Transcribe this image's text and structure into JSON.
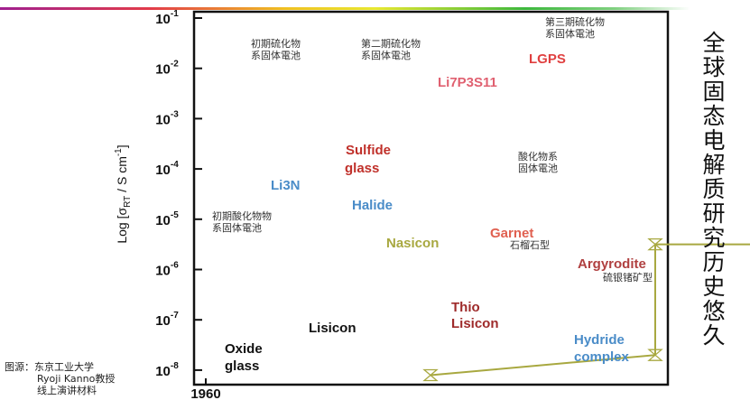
{
  "slide": {
    "side_title": "全球固态电解质研究历史悠久",
    "source_lines": [
      "图源：东京工业大学",
      "Ryoji Kanno教授",
      "线上演讲材料"
    ]
  },
  "chart_data": {
    "type": "line",
    "xlabel": "",
    "ylabel": "Log [σRT / S cm-1]",
    "ylabel_parts": {
      "prefix": "Log [σ",
      "sub": "RT",
      "mid": " / S cm",
      "sup": "-1",
      "suffix": "]"
    },
    "x_range": [
      1957,
      2023
    ],
    "y_scale": "log",
    "y_range_log10": [
      -8.3,
      -0.9
    ],
    "x_ticks": [
      "1960",
      "1970",
      "1980",
      "1990",
      "2000",
      "2010",
      "2020"
    ],
    "y_ticks": [
      {
        "base": "10",
        "exp": "-1"
      },
      {
        "base": "10",
        "exp": "-2"
      },
      {
        "base": "10",
        "exp": "-3"
      },
      {
        "base": "10",
        "exp": "-4"
      },
      {
        "base": "10",
        "exp": "-5"
      },
      {
        "base": "10",
        "exp": "-6"
      },
      {
        "base": "10",
        "exp": "-7"
      },
      {
        "base": "10",
        "exp": "-8"
      }
    ],
    "grid": false,
    "series": [
      {
        "name": "Li3N",
        "color": "#4a8cc8",
        "marker": "bowtie",
        "x": [
          1976,
          1977,
          1979,
          1984
        ],
        "log10_y": [
          -6.5,
          -3.0,
          -2.6,
          -2.1
        ]
      },
      {
        "name": "Halide",
        "color": "#4a8cc8",
        "marker": "diamond",
        "x": [
          1976,
          1985,
          1997,
          2008,
          2012
        ],
        "log10_y": [
          -6.0,
          -4.2,
          -3.5,
          -3.0,
          -2.8
        ]
      },
      {
        "name": "Sulfide glass",
        "color": "#9e2a2a",
        "marker": "square",
        "x": [
          1980,
          1980,
          1981,
          1985,
          1992,
          2003
        ],
        "log10_y": [
          -4.3,
          -3.0,
          -2.8,
          -2.8,
          -2.8,
          -2.8
        ]
      },
      {
        "name": "Oxide glass",
        "color": "#a8a840",
        "marker": "hourglass",
        "x": [
          1963,
          1966,
          1966,
          1979,
          1980
        ],
        "log10_y": [
          -8.1,
          -7.7,
          -5.5,
          -5.5,
          -3.0
        ]
      },
      {
        "name": "Lisicon",
        "color": "#a8a840",
        "marker": "circle",
        "x": [
          1978,
          1979,
          1980,
          2010
        ],
        "log10_y": [
          -7.0,
          -5.4,
          -4.4,
          -4.4
        ]
      },
      {
        "name": "Nasicon",
        "color": "#a8a840",
        "marker": "hourglass",
        "x": [
          1990,
          1990,
          1990,
          1993,
          2003
        ],
        "log10_y": [
          -5.3,
          -4.0,
          -3.1,
          -3.0,
          -2.7
        ]
      },
      {
        "name": "Thio Lisicon",
        "color": "#9e2a2a",
        "marker": "arrow",
        "x": [
          2000,
          2000
        ],
        "log10_y": [
          -7.4,
          -2.6
        ]
      },
      {
        "name": "Li7P3S11",
        "color": "#9e2a2a",
        "marker": "square",
        "x": [
          1998,
          2004
        ],
        "log10_y": [
          -2.9,
          -2.9
        ]
      },
      {
        "name": "LGPS",
        "color": "#9e2a2a",
        "marker": "circle",
        "x": [
          2004,
          2009,
          2011,
          2018
        ],
        "log10_y": [
          -2.2,
          -2.2,
          -1.8,
          -1.8
        ]
      },
      {
        "name": "Garnet",
        "color": "#e06050",
        "marker": "hourglass",
        "x": [
          2003,
          2003,
          2005,
          2008,
          2012,
          2017
        ],
        "log10_y": [
          -6.3,
          -5.6,
          -4.1,
          -3.4,
          -3.1,
          -2.9
        ]
      },
      {
        "name": "Argyrodite",
        "color": "#b04040",
        "marker": "triangle",
        "x": [
          2010,
          2010,
          2012,
          2016,
          2019
        ],
        "log10_y": [
          -6.8,
          -3.6,
          -3.3,
          -3.0,
          -2.3
        ]
      },
      {
        "name": "Hydride complex",
        "color": "#4a8cc8",
        "marker": "triangle",
        "x": [
          2007,
          2009,
          2012,
          2017,
          2019
        ],
        "log10_y": [
          -7.9,
          -4.0,
          -3.7,
          -3.3,
          -2.4
        ]
      },
      {
        "name": "",
        "color": "#9e2a2a",
        "marker": "filled-square",
        "x": [
          2011,
          2014,
          2016,
          2019
        ],
        "log10_y": [
          -2.2,
          -2.0,
          -1.8,
          -1.8
        ]
      }
    ],
    "labels": [
      {
        "text": "Li3N",
        "color": "#4a8cc8"
      },
      {
        "text": "Halide",
        "color": "#4a8cc8"
      },
      {
        "text": "Sulfide",
        "color": "#c0302a"
      },
      {
        "text": "glass",
        "color": "#c0302a"
      },
      {
        "text": "Nasicon",
        "color": "#a8a840"
      },
      {
        "text": "Lisicon",
        "color": "#111111"
      },
      {
        "text": "Oxide",
        "color": "#111111"
      },
      {
        "text": "glass",
        "color": "#111111"
      },
      {
        "text": "Thio",
        "color": "#9e2a2a"
      },
      {
        "text": "Lisicon",
        "color": "#9e2a2a"
      },
      {
        "text": "Garnet",
        "color": "#e06050"
      },
      {
        "text": "Argyrodite",
        "color": "#b04040"
      },
      {
        "text": "Hydride",
        "color": "#4a8cc8"
      },
      {
        "text": "complex",
        "color": "#4a8cc8"
      },
      {
        "text": "LGPS",
        "color": "#e04040"
      },
      {
        "text": "Li7P3S11",
        "color": "#e06070"
      }
    ],
    "annotations": [
      {
        "lines": [
          "初期硫化物",
          "系固体電池"
        ]
      },
      {
        "lines": [
          "第二期硫化物",
          "系固体電池"
        ]
      },
      {
        "lines": [
          "第三期硫化物",
          "系固体電池"
        ]
      },
      {
        "lines": [
          "酸化物系",
          "固体電池"
        ]
      },
      {
        "lines": [
          "初期酸化物物",
          "系固体電池"
        ]
      },
      {
        "lines": [
          "石榴石型"
        ]
      },
      {
        "lines": [
          "硫银锗矿型"
        ]
      }
    ],
    "highlight": {
      "marker_year": 2010.5,
      "box_x": [
        2010.5,
        2022
      ],
      "box_log10_y": [
        -4.1,
        -1.05
      ],
      "line_color": "#c00000",
      "box_color": "#7a3fa0"
    }
  }
}
